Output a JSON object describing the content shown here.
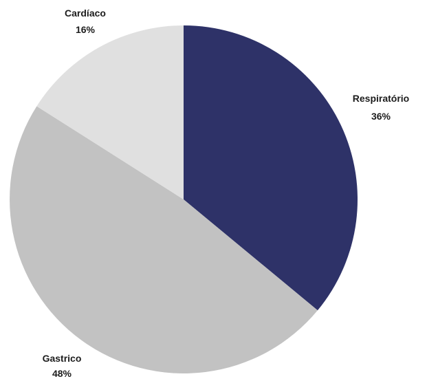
{
  "chart_data": {
    "type": "pie",
    "title": "",
    "slices": [
      {
        "label": "Respiratório",
        "value": 36,
        "value_label": "36%",
        "color": "#2e3268"
      },
      {
        "label": "Gastrico",
        "value": 48,
        "value_label": "48%",
        "color": "#c2c2c2"
      },
      {
        "label": "Cardíaco",
        "value": 16,
        "value_label": "16%",
        "color": "#e0e0e0"
      }
    ],
    "start": "12 o'clock",
    "direction": "clockwise",
    "legend": "none"
  }
}
